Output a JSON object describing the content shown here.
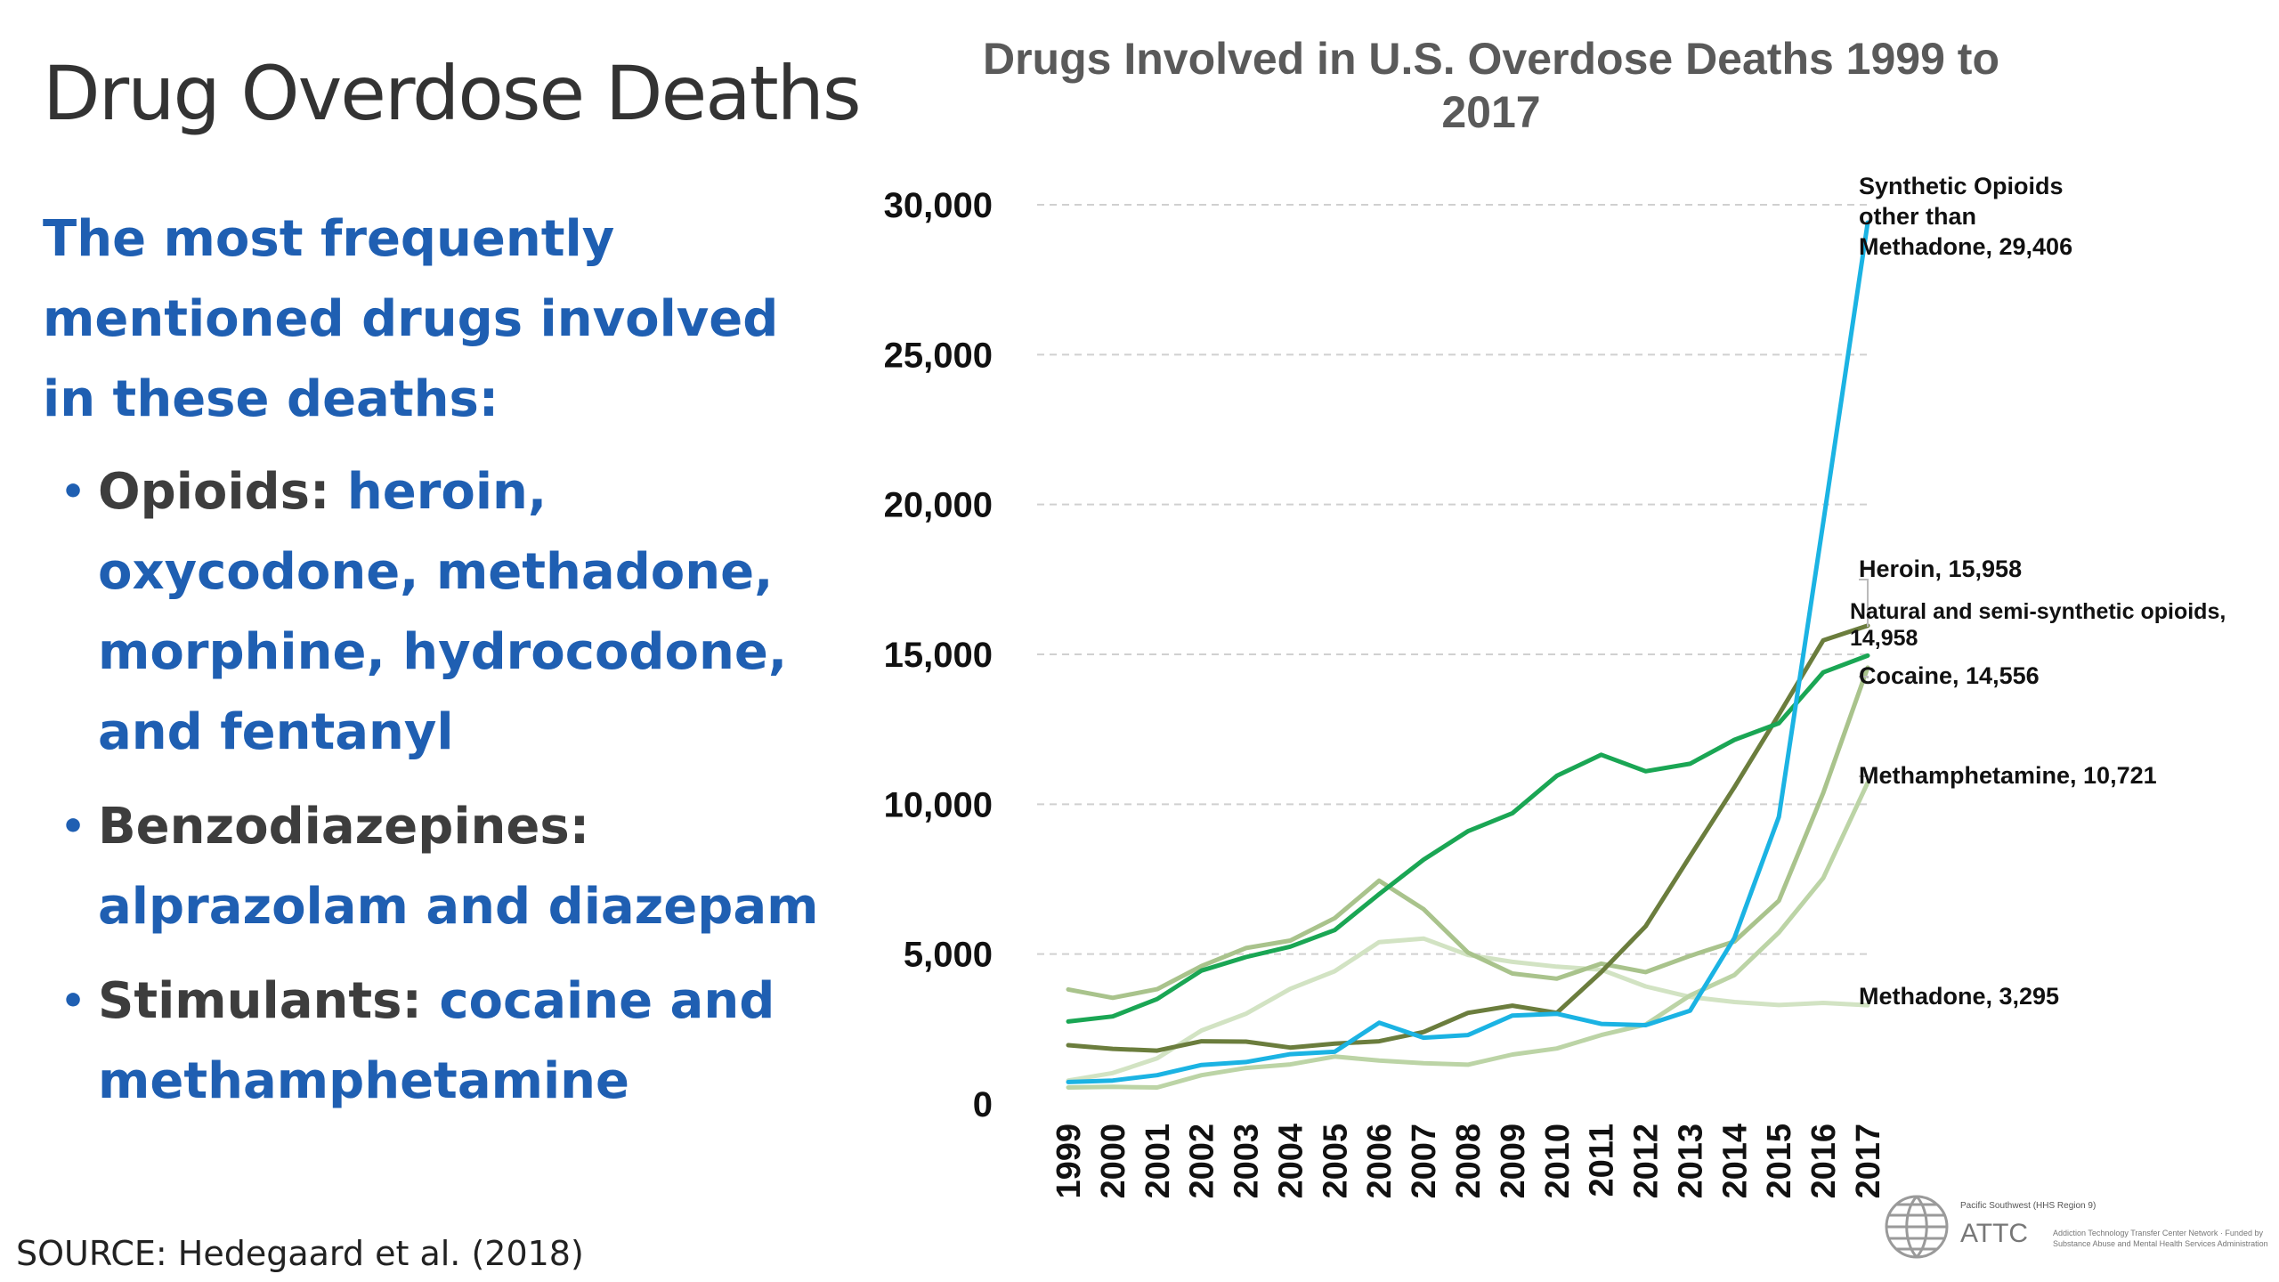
{
  "slide": {
    "title": "Drug Overdose Deaths",
    "intro": "The most frequently mentioned drugs involved in these deaths:",
    "bullets": [
      {
        "category": "Opioids: ",
        "drugs": "heroin, oxycodone, methadone, morphine, hydrocodone, and fentanyl"
      },
      {
        "category": "Benzodiazepines: ",
        "drugs": "alprazolam and diazepam"
      },
      {
        "category": "Stimulants: ",
        "drugs": "cocaine and methamphetamine"
      }
    ],
    "source": "SOURCE: Hedegaard et al. (2018)"
  },
  "logo": {
    "org_line": "Pacific Southwest (HHS Region 9)",
    "name": "ATTC",
    "tagline": "Addiction Technology Transfer Center Network · Funded by Substance Abuse and Mental Health Services Administration"
  },
  "chart_data": {
    "type": "line",
    "title": "Drugs Involved in U.S. Overdose Deaths 1999 to 2017",
    "xlabel": "",
    "ylabel": "",
    "ylim": [
      0,
      30000
    ],
    "yticks": [
      0,
      5000,
      10000,
      15000,
      20000,
      25000,
      30000
    ],
    "ytick_labels": [
      "0",
      "5,000",
      "10,000",
      "15,000",
      "20,000",
      "25,000",
      "30,000"
    ],
    "grid": "horizontal dashed",
    "x": [
      "1999",
      "2000",
      "2001",
      "2002",
      "2003",
      "2004",
      "2005",
      "2006",
      "2007",
      "2008",
      "2009",
      "2010",
      "2011",
      "2012",
      "2013",
      "2014",
      "2015",
      "2016",
      "2017"
    ],
    "series": [
      {
        "name": "Synthetic Opioids other than Methadone",
        "color": "#1bb3e3",
        "values": [
          730,
          780,
          960,
          1300,
          1400,
          1660,
          1740,
          2710,
          2210,
          2300,
          2950,
          3010,
          2670,
          2630,
          3110,
          5540,
          9580,
          19410,
          29406
        ],
        "label_lines": [
          "Synthetic Opioids",
          "other than",
          "Methadone, 29,406"
        ]
      },
      {
        "name": "Heroin",
        "color": "#6b7d3d",
        "values": [
          1960,
          1840,
          1780,
          2090,
          2080,
          1880,
          2010,
          2090,
          2400,
          3040,
          3280,
          3040,
          4400,
          5930,
          8260,
          10570,
          12990,
          15470,
          15958
        ],
        "label_lines": [
          "Heroin, 15,958"
        ]
      },
      {
        "name": "Natural and semi-synthetic opioids",
        "color": "#1aa654",
        "values": [
          2750,
          2920,
          3500,
          4450,
          4900,
          5250,
          5800,
          7000,
          8150,
          9100,
          9700,
          10950,
          11650,
          11100,
          11350,
          12150,
          12700,
          14400,
          14958
        ],
        "label_lines": [
          "Natural and semi-synthetic opioids,",
          "14,958"
        ]
      },
      {
        "name": "Cocaine",
        "color": "#a9c38c",
        "values": [
          3820,
          3540,
          3830,
          4600,
          5200,
          5450,
          6200,
          7450,
          6500,
          5050,
          4350,
          4180,
          4680,
          4400,
          4940,
          5420,
          6780,
          10380,
          14556
        ],
        "label_lines": [
          "Cocaine, 14,556"
        ]
      },
      {
        "name": "Methamphetamine",
        "color": "#bcd4a6",
        "values": [
          550,
          570,
          550,
          960,
          1200,
          1320,
          1580,
          1450,
          1360,
          1310,
          1650,
          1850,
          2300,
          2650,
          3620,
          4300,
          5720,
          7540,
          10721
        ],
        "label_lines": [
          "Methamphetamine, 10,721"
        ]
      },
      {
        "name": "Methadone",
        "color": "#d2e3c3",
        "values": [
          780,
          1030,
          1520,
          2450,
          3010,
          3840,
          4430,
          5400,
          5520,
          4970,
          4740,
          4580,
          4480,
          3920,
          3570,
          3400,
          3300,
          3370,
          3295
        ],
        "label_lines": [
          "Methadone, 3,295"
        ]
      }
    ]
  }
}
